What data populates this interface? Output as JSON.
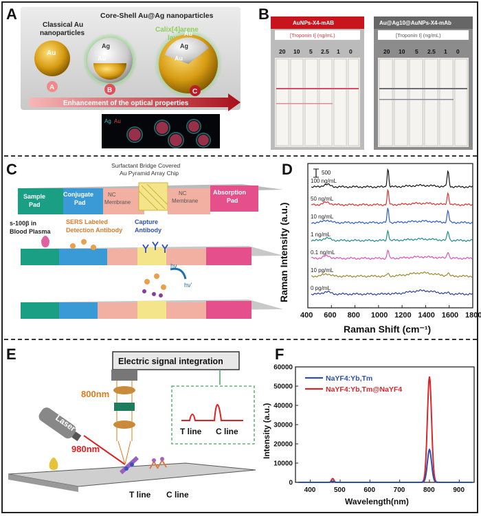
{
  "panels": {
    "A": {
      "letter": "A",
      "title_classical": "Classical Au nanoparticles",
      "title_classical_l1": "Classical Au",
      "title_classical_l2": "nanoparticles",
      "title_coreshell": "Core-Shell Au@Ag nanoparticles",
      "calix_l1": "Calix[4]arene",
      "calix_l2": "layer",
      "au": "Au",
      "ag": "Ag",
      "labels": [
        "A",
        "B",
        "C"
      ],
      "arrow_text": "Enhancement of the optical properties",
      "map_ag": "Ag",
      "map_au": "Au"
    },
    "B": {
      "letter": "B",
      "left_header": "AuNPs-X4-mAB",
      "right_header": "Au@Ag10@AuNPs-X4-mAb",
      "subheader": "[Troponin I] (ng/mL)",
      "concentrations": [
        "20",
        "10",
        "5",
        "2.5",
        "1",
        "0"
      ]
    },
    "C": {
      "letter": "C",
      "chip_l1": "Surfactant Bridge Covered",
      "chip_l2": "Au Pyramid Array Chip",
      "sample_pad": [
        "Sample",
        "Pad"
      ],
      "conjugate_pad": [
        "Conjugate",
        "Pad"
      ],
      "nc_membrane_1": [
        "NC",
        "Membrane"
      ],
      "nc_membrane_2": [
        "NC",
        "Membrane"
      ],
      "absorption_pad": [
        "Absorption",
        "Pad"
      ],
      "blood_plasma": [
        "s-100β in",
        "Blood Plasma"
      ],
      "sers_label": [
        "SERS Labeled",
        "Detection Antibody"
      ],
      "capture_label": [
        "Capture",
        "Antibody"
      ],
      "hv1": "hν",
      "hv2": "hν'"
    },
    "D": {
      "letter": "D",
      "ylabel": "Raman Intensity (a.u.)",
      "xlabel": "Raman Shift (cm⁻¹)",
      "scale_bar": "500"
    },
    "E": {
      "letter": "E",
      "box_title": "Electric signal integration",
      "wl_800": "800nm",
      "wl_980": "980nm",
      "laser": "Laser",
      "t_line": "T line",
      "c_line": "C line",
      "t_line_strip": "T line",
      "c_line_strip": "C line"
    },
    "F": {
      "letter": "F",
      "legend_1": "NaYF4:Yb,Tm",
      "legend_2": "NaYF4:Yb,Tm@NaYF4"
    }
  },
  "chart_data": [
    {
      "type": "line",
      "panel": "D",
      "xlabel": "Raman Shift (cm-1)",
      "ylabel": "Raman Intensity (a.u.)",
      "xlim": [
        400,
        1800
      ],
      "xticks": [
        400,
        600,
        800,
        1000,
        1200,
        1400,
        1600,
        1800
      ],
      "series": [
        {
          "name": "100 ng/mL",
          "color": "#111111",
          "offset": 6,
          "peak1080": 1.9,
          "peak1590": 1.6
        },
        {
          "name": "50 ng/mL",
          "color": "#e0302a",
          "offset": 5,
          "peak1080": 1.5,
          "peak1590": 1.2
        },
        {
          "name": "10 ng/mL",
          "color": "#2b5cc8",
          "offset": 4,
          "peak1080": 1.5,
          "peak1590": 1.2
        },
        {
          "name": "1 ng/mL",
          "color": "#1b8c8c",
          "offset": 3,
          "peak1080": 1.1,
          "peak1590": 0.9
        },
        {
          "name": "0.1 ng/mL",
          "color": "#e04fc0",
          "offset": 2,
          "peak1080": 0.9,
          "peak1590": 0.7
        },
        {
          "name": "10 pg/mL",
          "color": "#9a8a2a",
          "offset": 1,
          "peak1080": 0.3,
          "peak1590": 0.3
        },
        {
          "name": "0 pg/mL",
          "color": "#2a3f9a",
          "offset": 0,
          "peak1080": 0.1,
          "peak1590": 0.1
        }
      ]
    },
    {
      "type": "line",
      "panel": "F",
      "xlabel": "Wavelength(nm)",
      "ylabel": "Intensity (a.u.)",
      "xlim": [
        350,
        950
      ],
      "ylim": [
        0,
        60000
      ],
      "xticks": [
        400,
        500,
        600,
        700,
        800,
        900
      ],
      "yticks": [
        0,
        10000,
        20000,
        30000,
        40000,
        50000,
        60000
      ],
      "series": [
        {
          "name": "NaYF4:Yb,Tm",
          "color": "#2b4fb0",
          "peak_x": 800,
          "peak_y": 17000,
          "small_peak_x": 475,
          "small_peak_y": 600
        },
        {
          "name": "NaYF4:Yb,Tm@NaYF4",
          "color": "#d8262a",
          "peak_x": 800,
          "peak_y": 55000,
          "small_peak_x": 475,
          "small_peak_y": 2000
        }
      ]
    }
  ]
}
